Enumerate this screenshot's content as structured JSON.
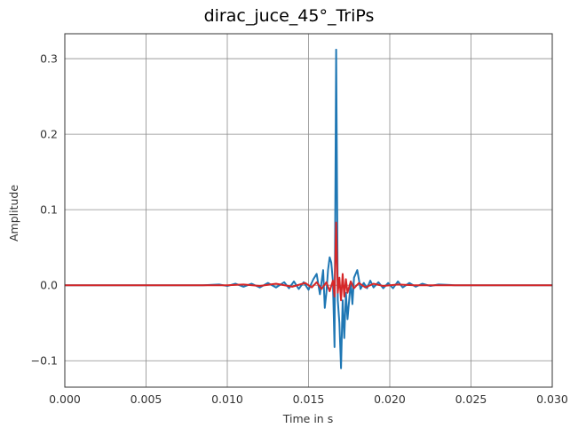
{
  "chart_data": {
    "type": "line",
    "title": "dirac_juce_45°_TriPs",
    "xlabel": "Time in s",
    "ylabel": "Amplitude",
    "xlim": [
      0.0,
      0.03
    ],
    "ylim": [
      -0.135,
      0.333
    ],
    "x_ticks": [
      0.0,
      0.005,
      0.01,
      0.015,
      0.02,
      0.025,
      0.03
    ],
    "x_tick_labels": [
      "0.000",
      "0.005",
      "0.010",
      "0.015",
      "0.020",
      "0.025",
      "0.030"
    ],
    "y_ticks": [
      -0.1,
      0.0,
      0.1,
      0.2,
      0.3
    ],
    "y_tick_labels": [
      "−0.1",
      "0.0",
      "0.1",
      "0.2",
      "0.3"
    ],
    "grid": true,
    "series": [
      {
        "color": "#1f77b4",
        "points": [
          [
            0.0,
            0.0
          ],
          [
            0.0085,
            0.0
          ],
          [
            0.0095,
            0.001
          ],
          [
            0.01,
            -0.001
          ],
          [
            0.0105,
            0.002
          ],
          [
            0.011,
            -0.002
          ],
          [
            0.0115,
            0.002
          ],
          [
            0.012,
            -0.003
          ],
          [
            0.0125,
            0.003
          ],
          [
            0.013,
            -0.003
          ],
          [
            0.0135,
            0.004
          ],
          [
            0.0138,
            -0.004
          ],
          [
            0.0141,
            0.005
          ],
          [
            0.0144,
            -0.005
          ],
          [
            0.0147,
            0.004
          ],
          [
            0.015,
            -0.006
          ],
          [
            0.0153,
            0.008
          ],
          [
            0.0155,
            0.015
          ],
          [
            0.0157,
            -0.012
          ],
          [
            0.0159,
            0.02
          ],
          [
            0.016,
            -0.03
          ],
          [
            0.0161,
            -0.01
          ],
          [
            0.0162,
            0.02
          ],
          [
            0.0163,
            0.037
          ],
          [
            0.0164,
            0.03
          ],
          [
            0.0165,
            0.005
          ],
          [
            0.0166,
            -0.082
          ],
          [
            0.0167,
            0.312
          ],
          [
            0.0168,
            -0.02
          ],
          [
            0.0169,
            -0.05
          ],
          [
            0.017,
            -0.11
          ],
          [
            0.0171,
            -0.02
          ],
          [
            0.0172,
            -0.07
          ],
          [
            0.0173,
            -0.01
          ],
          [
            0.0174,
            -0.045
          ],
          [
            0.0175,
            -0.02
          ],
          [
            0.0176,
            0.005
          ],
          [
            0.0177,
            -0.025
          ],
          [
            0.0178,
            0.01
          ],
          [
            0.018,
            0.02
          ],
          [
            0.0182,
            -0.005
          ],
          [
            0.0184,
            0.003
          ],
          [
            0.0186,
            -0.004
          ],
          [
            0.0188,
            0.006
          ],
          [
            0.019,
            -0.003
          ],
          [
            0.0193,
            0.004
          ],
          [
            0.0196,
            -0.004
          ],
          [
            0.0199,
            0.003
          ],
          [
            0.0202,
            -0.004
          ],
          [
            0.0205,
            0.005
          ],
          [
            0.0208,
            -0.003
          ],
          [
            0.0212,
            0.003
          ],
          [
            0.0216,
            -0.002
          ],
          [
            0.022,
            0.002
          ],
          [
            0.0225,
            -0.001
          ],
          [
            0.023,
            0.001
          ],
          [
            0.024,
            0.0
          ],
          [
            0.03,
            0.0
          ]
        ]
      },
      {
        "color": "#d62728",
        "points": [
          [
            0.0,
            0.0
          ],
          [
            0.01,
            0.0
          ],
          [
            0.011,
            0.001
          ],
          [
            0.012,
            -0.001
          ],
          [
            0.013,
            0.002
          ],
          [
            0.014,
            -0.002
          ],
          [
            0.0148,
            0.003
          ],
          [
            0.0152,
            -0.003
          ],
          [
            0.0155,
            0.004
          ],
          [
            0.0158,
            -0.005
          ],
          [
            0.0161,
            0.004
          ],
          [
            0.0163,
            -0.008
          ],
          [
            0.0165,
            0.006
          ],
          [
            0.0166,
            -0.015
          ],
          [
            0.0167,
            0.083
          ],
          [
            0.0168,
            -0.01
          ],
          [
            0.0169,
            0.01
          ],
          [
            0.017,
            -0.02
          ],
          [
            0.0171,
            0.015
          ],
          [
            0.0172,
            -0.015
          ],
          [
            0.0173,
            0.008
          ],
          [
            0.0174,
            -0.01
          ],
          [
            0.0176,
            0.005
          ],
          [
            0.0178,
            -0.004
          ],
          [
            0.0181,
            0.003
          ],
          [
            0.0185,
            -0.003
          ],
          [
            0.019,
            0.002
          ],
          [
            0.0196,
            -0.001
          ],
          [
            0.0205,
            0.001
          ],
          [
            0.0215,
            0.0
          ],
          [
            0.03,
            0.0
          ]
        ]
      }
    ]
  }
}
